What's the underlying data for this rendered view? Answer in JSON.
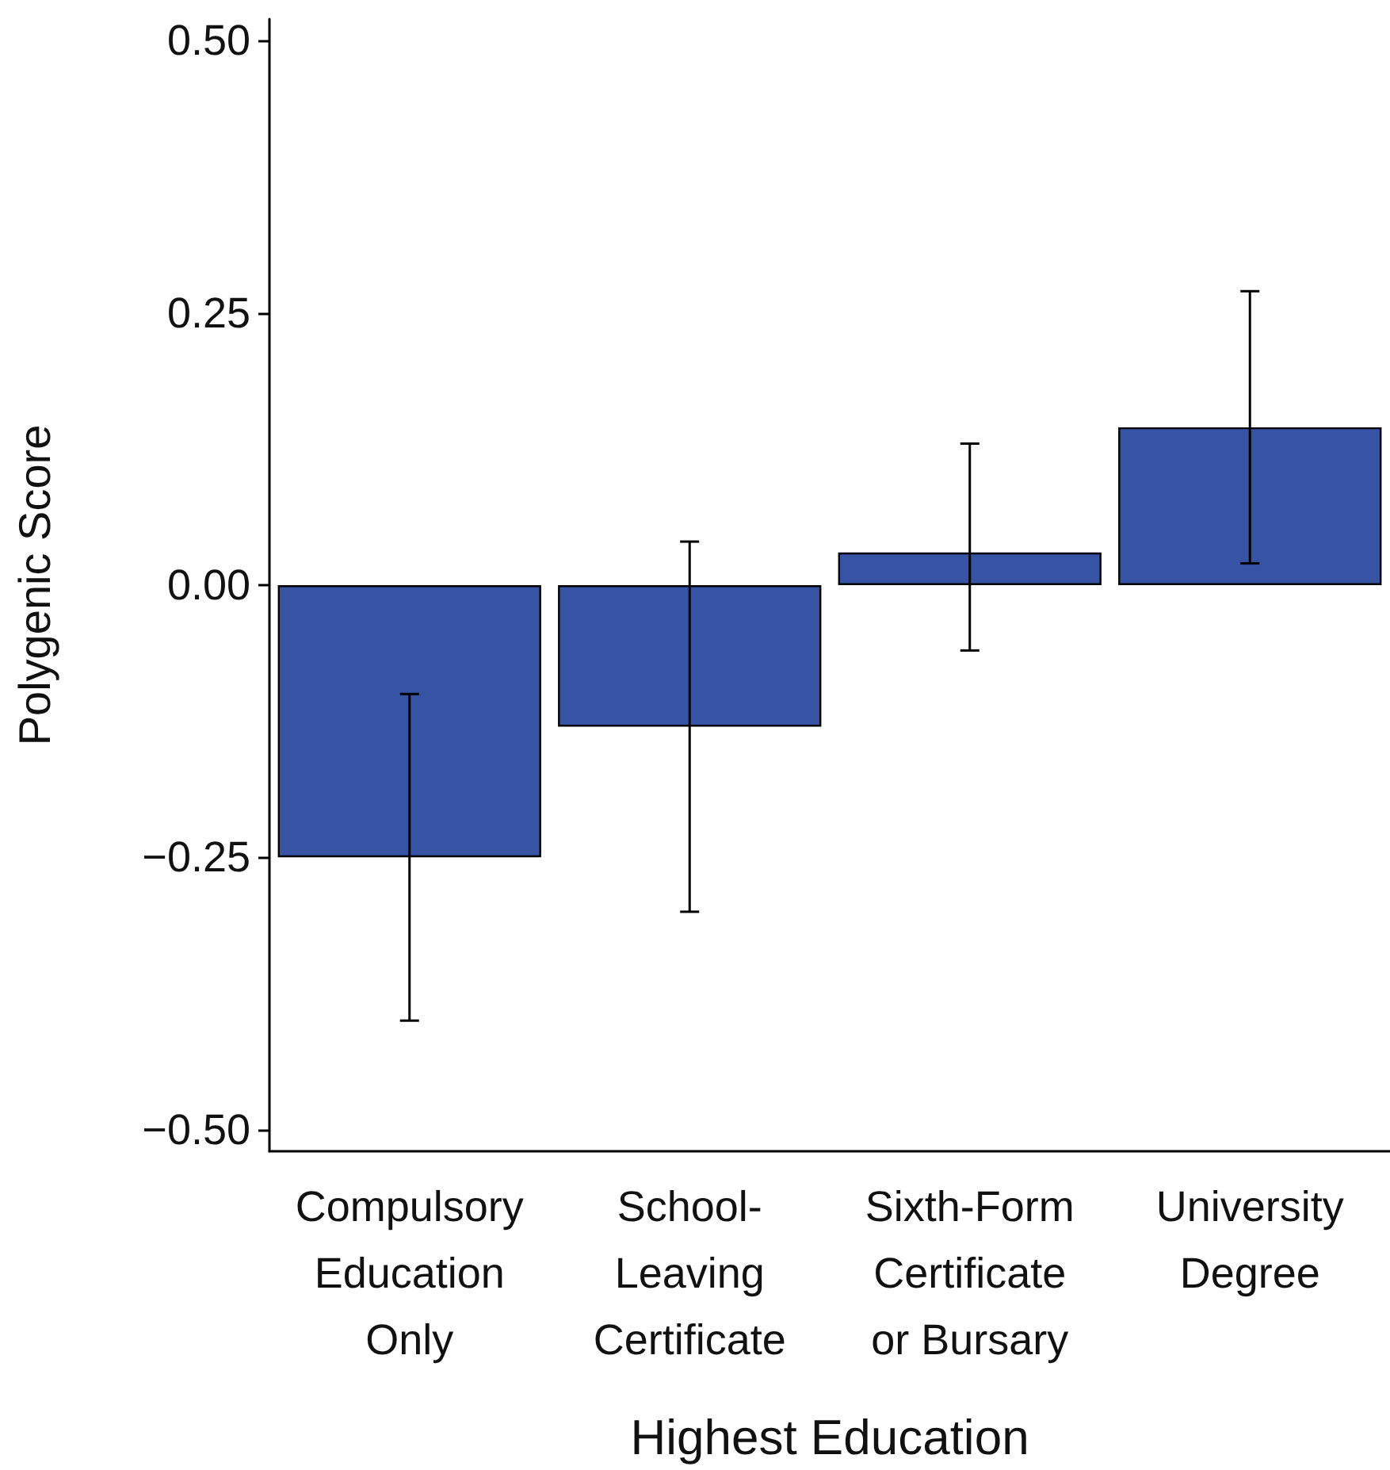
{
  "chart_data": {
    "type": "bar",
    "xlabel": "Highest Education",
    "ylabel": "Polygenic Score",
    "categories": [
      "Compulsory\nEducation\nOnly",
      "School-\nLeaving\nCertificate",
      "Sixth-Form\nCertificate\nor Bursary",
      "University\nDegree"
    ],
    "values": [
      -0.25,
      -0.13,
      0.03,
      0.145
    ],
    "errors": [
      [
        -0.4,
        -0.1
      ],
      [
        -0.3,
        0.04
      ],
      [
        -0.06,
        0.13
      ],
      [
        0.02,
        0.27
      ]
    ],
    "color": "#3653a4",
    "ylim": [
      -0.52,
      0.52
    ],
    "yticks": [
      {
        "value": -0.5,
        "label": "−0.50"
      },
      {
        "value": -0.25,
        "label": "−0.25"
      },
      {
        "value": 0,
        "label": "0.00"
      },
      {
        "value": 0.25,
        "label": "0.25"
      },
      {
        "value": 0.5,
        "label": "0.50"
      }
    ],
    "grid": false
  }
}
